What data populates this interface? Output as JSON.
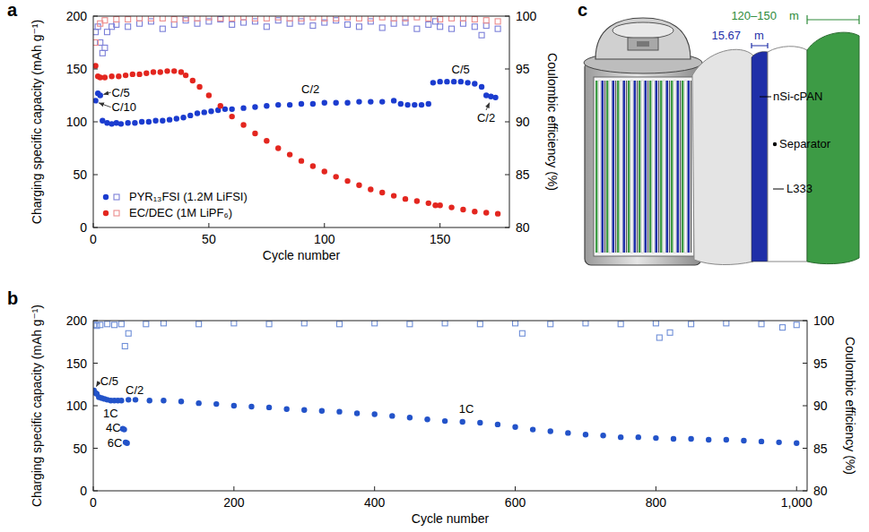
{
  "chart_data": [
    {
      "type": "scatter",
      "panel_label": "a",
      "x_label": "Cycle number",
      "y_label": "Charging specific capacity (mAh g⁻¹)",
      "y2_label": "Coulombic efficiency (%)",
      "xlim": [
        0,
        180
      ],
      "xticks": [
        0,
        50,
        100,
        150
      ],
      "ylim": [
        0,
        200
      ],
      "yticks": [
        0,
        50,
        100,
        150,
        200
      ],
      "y2lim": [
        80,
        100
      ],
      "y2ticks": [
        80,
        85,
        90,
        95,
        100
      ],
      "grid": false,
      "legend": "lower left",
      "series": [
        {
          "name": "PYR₁₃FSI (1.2M LiFSI)",
          "color": "#1b3ccf",
          "marker": "circle",
          "x": [
            1,
            2,
            3,
            4,
            6,
            8,
            10,
            12,
            15,
            18,
            21,
            24,
            27,
            30,
            33,
            36,
            39,
            42,
            45,
            48,
            51,
            54,
            57,
            60,
            65,
            70,
            75,
            80,
            85,
            90,
            95,
            100,
            105,
            110,
            115,
            120,
            125,
            130,
            133,
            136,
            139,
            142,
            145,
            147,
            150,
            153,
            156,
            159,
            162,
            165,
            168,
            170,
            172,
            174
          ],
          "values": [
            120,
            127,
            125,
            101,
            99,
            98,
            99,
            98,
            99,
            99,
            100,
            100,
            101,
            101,
            102,
            103,
            104,
            106,
            108,
            109,
            110,
            111,
            112,
            112,
            113,
            114,
            115,
            116,
            116,
            117,
            117,
            118,
            118,
            118,
            119,
            119,
            119,
            120,
            117,
            116,
            116,
            116,
            117,
            137,
            138,
            138,
            138,
            138,
            137,
            136,
            133,
            125,
            124,
            123
          ]
        },
        {
          "name": "EC/DEC (1M LiPF₆)",
          "color": "#e3261f",
          "marker": "circle",
          "x": [
            1,
            2,
            3,
            5,
            8,
            11,
            14,
            17,
            20,
            23,
            26,
            29,
            32,
            35,
            38,
            40,
            43,
            46,
            50,
            55,
            60,
            65,
            70,
            75,
            80,
            85,
            90,
            95,
            100,
            105,
            110,
            115,
            120,
            125,
            130,
            135,
            140,
            145,
            148,
            150,
            155,
            160,
            165,
            170,
            175
          ],
          "values": [
            153,
            143,
            142,
            142,
            143,
            143,
            144,
            145,
            145,
            146,
            147,
            147,
            148,
            148,
            147,
            144,
            139,
            133,
            125,
            115,
            105,
            97,
            89,
            82,
            75,
            69,
            63,
            58,
            53,
            48,
            44,
            40,
            36,
            33,
            30,
            27,
            25,
            23,
            21,
            21,
            19,
            17,
            15,
            14,
            13
          ]
        },
        {
          "name": "PYR₁₃FSI (1.2M LiFSI)",
          "color": "#7b7fd8",
          "marker": "open_square",
          "axis": "y2",
          "x": [
            1,
            2,
            3,
            4,
            5,
            6,
            8,
            10,
            15,
            20,
            25,
            30,
            35,
            40,
            45,
            50,
            55,
            60,
            65,
            70,
            75,
            80,
            85,
            90,
            95,
            100,
            105,
            110,
            115,
            120,
            125,
            130,
            135,
            140,
            145,
            148,
            150,
            155,
            160,
            165,
            168,
            170,
            175
          ],
          "values": [
            98.5,
            99,
            97.5,
            96.5,
            97,
            98.5,
            99,
            99.2,
            99,
            99.3,
            99.5,
            98.8,
            99.2,
            99.6,
            99.3,
            99.5,
            99.7,
            99.2,
            99.4,
            99.5,
            99.0,
            99.6,
            99.3,
            99.5,
            99.1,
            99.4,
            99.6,
            99.2,
            99.0,
            99.5,
            98.9,
            99.3,
            99.4,
            98.8,
            99.2,
            99.5,
            99.0,
            98.8,
            99.3,
            99.0,
            98.2,
            99.1,
            98.8
          ]
        },
        {
          "name": "EC/DEC (1M LiPF₆)",
          "color": "#ec8c8c",
          "marker": "open_square",
          "axis": "y2",
          "x": [
            1,
            3,
            5,
            10,
            15,
            20,
            25,
            30,
            35,
            40,
            45,
            50,
            55,
            60,
            65,
            70,
            75,
            80,
            85,
            90,
            95,
            100,
            105,
            110,
            115,
            120,
            125,
            130,
            135,
            140,
            145,
            150,
            155,
            160,
            165,
            170,
            175
          ],
          "values": [
            97.5,
            99.3,
            99.6,
            99.7,
            99.7,
            99.8,
            99.8,
            99.8,
            99.7,
            99.8,
            99.8,
            99.9,
            99.8,
            99.8,
            99.9,
            99.8,
            99.8,
            99.9,
            99.8,
            99.8,
            99.9,
            99.8,
            99.8,
            99.9,
            99.8,
            99.8,
            99.9,
            99.8,
            99.8,
            99.9,
            99.8,
            99.7,
            99.8,
            99.8,
            99.7,
            99.6,
            99.5
          ]
        }
      ],
      "annotations": [
        {
          "text": "C/5",
          "x": 8,
          "y": 124,
          "arrow_to": [
            3,
            125
          ]
        },
        {
          "text": "C/10",
          "x": 8,
          "y": 110,
          "arrow_to": [
            1,
            119
          ]
        },
        {
          "text": "C/2",
          "x": 90,
          "y": 127
        },
        {
          "text": "C/5",
          "x": 155,
          "y": 146
        },
        {
          "text": "C/2",
          "x": 166,
          "y": 100,
          "arrow_to": [
            172,
            121
          ]
        }
      ]
    },
    {
      "type": "scatter",
      "panel_label": "b",
      "x_label": "Cycle number",
      "y_label": "Charging specific capacity (mAh g⁻¹)",
      "y2_label": "Coulombic efficiency (%)",
      "xlim": [
        0,
        1015
      ],
      "xticks": [
        0,
        200,
        400,
        600,
        800,
        {
          "value": 1000,
          "label": "1,000"
        }
      ],
      "ylim": [
        0,
        200
      ],
      "yticks": [
        0,
        50,
        100,
        150,
        200
      ],
      "y2lim": [
        80,
        100
      ],
      "y2ticks": [
        80,
        85,
        90,
        95,
        100
      ],
      "grid": false,
      "series": [
        {
          "color": "#2353c9",
          "marker": "circle",
          "x": [
            1,
            3,
            5,
            8,
            12,
            16,
            20,
            25,
            30,
            35,
            40,
            42,
            44,
            46,
            48,
            50,
            60,
            80,
            100,
            125,
            150,
            175,
            200,
            225,
            250,
            275,
            300,
            325,
            350,
            375,
            400,
            425,
            450,
            475,
            500,
            525,
            550,
            575,
            600,
            625,
            650,
            675,
            700,
            725,
            750,
            775,
            800,
            825,
            850,
            875,
            900,
            925,
            950,
            975,
            1000
          ],
          "values": [
            118,
            115,
            114,
            110,
            109,
            108,
            107,
            106,
            106,
            106,
            106,
            73,
            72,
            57,
            56,
            107,
            107,
            106,
            106,
            105,
            103,
            102,
            100,
            99,
            98,
            96,
            95,
            94,
            93,
            91,
            90,
            88,
            86,
            84,
            82,
            81,
            80,
            78,
            75,
            72,
            70,
            68,
            66,
            65,
            63,
            63,
            62,
            61,
            61,
            60,
            60,
            59,
            58,
            57,
            56
          ]
        },
        {
          "color": "#6f8fd8",
          "marker": "open_square",
          "axis": "y2",
          "x": [
            1,
            5,
            10,
            20,
            30,
            40,
            45,
            50,
            75,
            100,
            150,
            200,
            250,
            300,
            350,
            400,
            450,
            500,
            550,
            600,
            610,
            650,
            700,
            750,
            800,
            805,
            820,
            850,
            900,
            950,
            980,
            1000
          ],
          "values": [
            99.5,
            99.4,
            99.5,
            99.6,
            99.5,
            99.6,
            97,
            98.5,
            99.6,
            99.7,
            99.6,
            99.7,
            99.6,
            99.7,
            99.6,
            99.7,
            99.6,
            99.7,
            99.6,
            99.7,
            98.5,
            99.6,
            99.7,
            99.6,
            99.7,
            98,
            98.6,
            99.6,
            99.7,
            99.6,
            99.2,
            99.5
          ]
        }
      ],
      "annotations": [
        {
          "text": "C/5",
          "x": 10,
          "y": 124,
          "arrow_to": [
            2,
            119
          ]
        },
        {
          "text": "C/2",
          "x": 46,
          "y": 114
        },
        {
          "text": "1C",
          "x": 14,
          "y": 86
        },
        {
          "text": "4C",
          "x": 18,
          "y": 69
        },
        {
          "text": "6C",
          "x": 20,
          "y": 52
        },
        {
          "text": "1C",
          "x": 520,
          "y": 92
        }
      ]
    }
  ],
  "diagram": {
    "panel_label": "c",
    "dimensions": [
      {
        "value": "120–150",
        "unit": "m",
        "color": "#2e8b3a"
      },
      {
        "value": "15.67",
        "unit": "m",
        "color": "#1f2fa8"
      }
    ],
    "layers": [
      {
        "label": "nSi-cPAN",
        "color": "#1f2fa8"
      },
      {
        "label": "Separator",
        "color": "#ffffff"
      },
      {
        "label": "L333",
        "color": "#3d9b45"
      }
    ]
  }
}
